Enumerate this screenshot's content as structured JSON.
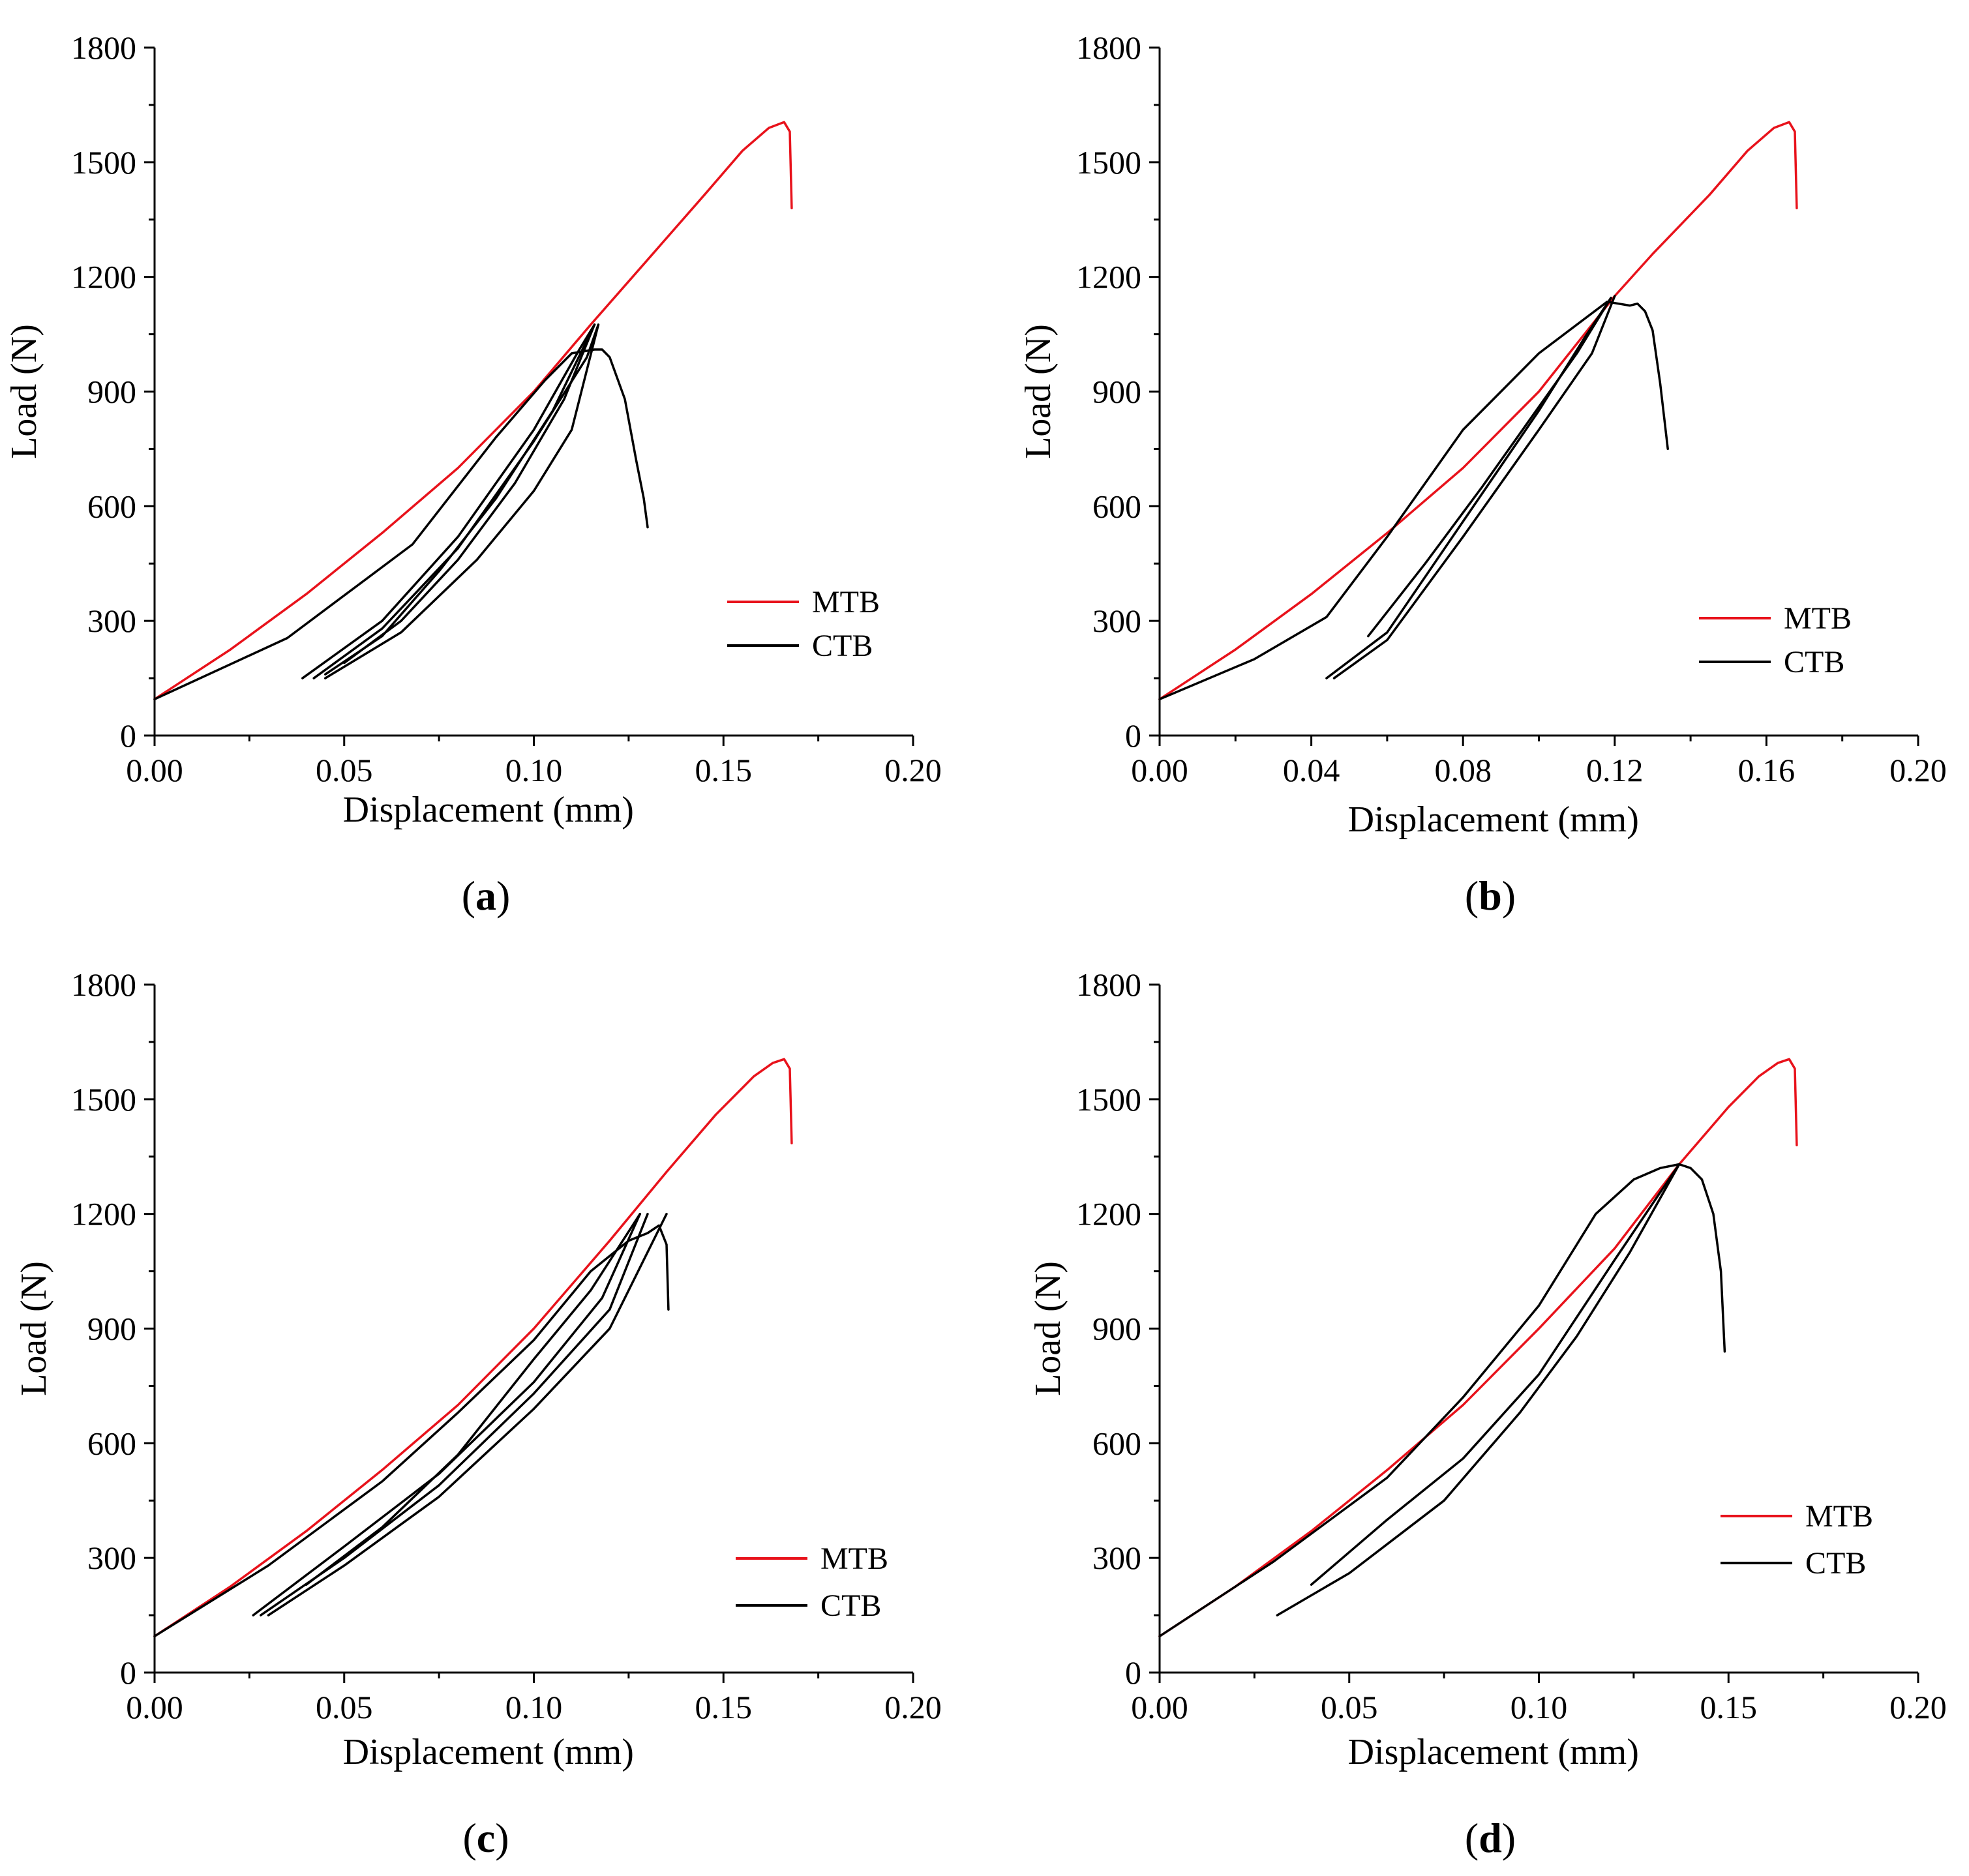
{
  "figure": {
    "colors": {
      "mtb": "#e8121b",
      "ctb": "#000000",
      "axis": "#000000",
      "background": "#ffffff"
    }
  },
  "chart_data": [
    {
      "panel": "a",
      "label_prefix": "(",
      "label_letter": "a",
      "label_suffix": ")",
      "type": "line",
      "xlabel": "Displacement  (mm)",
      "ylabel": "Load  (N)",
      "xlim": [
        0,
        0.2
      ],
      "ylim": [
        0,
        1800
      ],
      "xticks": [
        "0.00",
        "0.05",
        "0.10",
        "0.15",
        "0.20"
      ],
      "yticks": [
        "0",
        "300",
        "600",
        "900",
        "1200",
        "1500",
        "1800"
      ],
      "legend": {
        "position": "lower-right",
        "entries": [
          "MTB",
          "CTB"
        ]
      },
      "series": [
        {
          "name": "MTB",
          "color": "#e8121b",
          "x": [
            0,
            0.02,
            0.04,
            0.06,
            0.08,
            0.1,
            0.115,
            0.13,
            0.145,
            0.155,
            0.162,
            0.166,
            0.1675,
            0.168
          ],
          "y": [
            95,
            225,
            370,
            530,
            700,
            900,
            1075,
            1245,
            1415,
            1530,
            1590,
            1605,
            1580,
            1380
          ]
        },
        {
          "name": "CTB",
          "color": "#000000",
          "x": [
            0,
            0.035,
            0.068,
            0.09,
            0.103,
            0.11,
            0.116,
            0.118,
            0.12,
            0.124,
            0.127,
            0.129,
            0.13
          ],
          "y": [
            95,
            255,
            500,
            780,
            930,
            1000,
            1010,
            1010,
            990,
            880,
            720,
            620,
            545
          ]
        },
        {
          "name": "CTB",
          "color": "#000000",
          "x": [
            0.039,
            0.06,
            0.08,
            0.1,
            0.112,
            0.116
          ],
          "y": [
            150,
            300,
            520,
            800,
            1010,
            1075
          ]
        },
        {
          "name": "CTB",
          "color": "#000000",
          "x": [
            0.042,
            0.06,
            0.08,
            0.1,
            0.114,
            0.117
          ],
          "y": [
            150,
            280,
            490,
            770,
            990,
            1075
          ]
        },
        {
          "name": "CTB",
          "color": "#000000",
          "x": [
            0.045,
            0.065,
            0.085,
            0.1,
            0.11,
            0.117
          ],
          "y": [
            150,
            270,
            460,
            640,
            800,
            1075
          ]
        },
        {
          "name": "CTB",
          "color": "#000000",
          "x": [
            0.116,
            0.105,
            0.09,
            0.075,
            0.06,
            0.045
          ],
          "y": [
            1075,
            850,
            620,
            430,
            260,
            160
          ]
        },
        {
          "name": "CTB",
          "color": "#000000",
          "x": [
            0.116,
            0.108,
            0.095,
            0.08,
            0.065,
            0.05
          ],
          "y": [
            1075,
            880,
            660,
            460,
            300,
            190
          ]
        }
      ]
    },
    {
      "panel": "b",
      "label_prefix": "(",
      "label_letter": "b",
      "label_suffix": ")",
      "type": "line",
      "xlabel": "Displacement  (mm)",
      "ylabel": "Load  (N)",
      "xlim": [
        0,
        0.2
      ],
      "ylim": [
        0,
        1800
      ],
      "xticks": [
        "0.00",
        "0.04",
        "0.08",
        "0.12",
        "0.16",
        "0.20"
      ],
      "yticks": [
        "0",
        "300",
        "600",
        "900",
        "1200",
        "1500",
        "1800"
      ],
      "legend": {
        "position": "lower-right",
        "entries": [
          "MTB",
          "CTB"
        ]
      },
      "series": [
        {
          "name": "MTB",
          "color": "#e8121b",
          "x": [
            0,
            0.02,
            0.04,
            0.06,
            0.08,
            0.1,
            0.12,
            0.13,
            0.145,
            0.155,
            0.162,
            0.166,
            0.1675,
            0.168
          ],
          "y": [
            95,
            225,
            370,
            530,
            700,
            900,
            1150,
            1260,
            1415,
            1530,
            1590,
            1605,
            1580,
            1380
          ]
        },
        {
          "name": "CTB",
          "color": "#000000",
          "x": [
            0,
            0.025,
            0.044,
            0.06,
            0.08,
            0.1,
            0.112,
            0.118,
            0.121,
            0.124,
            0.126,
            0.128,
            0.13,
            0.132,
            0.134
          ],
          "y": [
            95,
            200,
            310,
            520,
            800,
            1000,
            1090,
            1135,
            1130,
            1125,
            1130,
            1110,
            1060,
            920,
            750
          ]
        },
        {
          "name": "CTB",
          "color": "#000000",
          "x": [
            0.044,
            0.06,
            0.08,
            0.1,
            0.112,
            0.119
          ],
          "y": [
            150,
            270,
            560,
            850,
            1040,
            1145
          ]
        },
        {
          "name": "CTB",
          "color": "#000000",
          "x": [
            0.046,
            0.06,
            0.08,
            0.1,
            0.114,
            0.12
          ],
          "y": [
            150,
            250,
            520,
            800,
            1000,
            1150
          ]
        },
        {
          "name": "CTB",
          "color": "#000000",
          "x": [
            0.119,
            0.11,
            0.1,
            0.085,
            0.07,
            0.055
          ],
          "y": [
            1145,
            1000,
            860,
            650,
            450,
            260
          ]
        }
      ]
    },
    {
      "panel": "c",
      "label_prefix": "(",
      "label_letter": "c",
      "label_suffix": ")",
      "type": "line",
      "xlabel": "Displacement  (mm)",
      "ylabel": "Load  (N)",
      "xlim": [
        0,
        0.2
      ],
      "ylim": [
        0,
        1800
      ],
      "xticks": [
        "0.00",
        "0.05",
        "0.10",
        "0.15",
        "0.20"
      ],
      "yticks": [
        "0",
        "300",
        "600",
        "900",
        "1200",
        "1500",
        "1800"
      ],
      "legend": {
        "position": "lower-right",
        "entries": [
          "MTB",
          "CTB"
        ]
      },
      "series": [
        {
          "name": "MTB",
          "color": "#e8121b",
          "x": [
            0,
            0.02,
            0.04,
            0.06,
            0.08,
            0.1,
            0.12,
            0.135,
            0.148,
            0.158,
            0.163,
            0.166,
            0.1675,
            0.168
          ],
          "y": [
            95,
            225,
            370,
            530,
            700,
            900,
            1130,
            1310,
            1460,
            1560,
            1595,
            1605,
            1580,
            1385
          ]
        },
        {
          "name": "CTB",
          "color": "#000000",
          "x": [
            0,
            0.03,
            0.06,
            0.08,
            0.1,
            0.115,
            0.125,
            0.13,
            0.133,
            0.135,
            0.1355
          ],
          "y": [
            95,
            280,
            500,
            680,
            870,
            1050,
            1130,
            1150,
            1170,
            1120,
            950
          ]
        },
        {
          "name": "CTB",
          "color": "#000000",
          "x": [
            0.026,
            0.05,
            0.075,
            0.1,
            0.118,
            0.128
          ],
          "y": [
            150,
            330,
            520,
            760,
            980,
            1200
          ]
        },
        {
          "name": "CTB",
          "color": "#000000",
          "x": [
            0.028,
            0.05,
            0.075,
            0.1,
            0.12,
            0.13
          ],
          "y": [
            150,
            300,
            490,
            730,
            950,
            1200
          ]
        },
        {
          "name": "CTB",
          "color": "#000000",
          "x": [
            0.03,
            0.05,
            0.075,
            0.1,
            0.12,
            0.135
          ],
          "y": [
            150,
            280,
            460,
            690,
            900,
            1200
          ]
        },
        {
          "name": "CTB",
          "color": "#000000",
          "x": [
            0.128,
            0.115,
            0.1,
            0.08,
            0.06,
            0.04
          ],
          "y": [
            1200,
            1000,
            820,
            570,
            380,
            230
          ]
        }
      ]
    },
    {
      "panel": "d",
      "label_prefix": "(",
      "label_letter": "d",
      "label_suffix": ")",
      "type": "line",
      "xlabel": "Displacement  (mm)",
      "ylabel": "Load  (N)",
      "xlim": [
        0,
        0.2
      ],
      "ylim": [
        0,
        1800
      ],
      "xticks": [
        "0.00",
        "0.05",
        "0.10",
        "0.15",
        "0.20"
      ],
      "yticks": [
        "0",
        "300",
        "600",
        "900",
        "1200",
        "1500",
        "1800"
      ],
      "legend": {
        "position": "lower-right",
        "entries": [
          "MTB",
          "CTB"
        ]
      },
      "series": [
        {
          "name": "MTB",
          "color": "#e8121b",
          "x": [
            0,
            0.02,
            0.04,
            0.06,
            0.08,
            0.1,
            0.12,
            0.137,
            0.15,
            0.158,
            0.163,
            0.166,
            0.1675,
            0.168
          ],
          "y": [
            95,
            225,
            370,
            530,
            700,
            900,
            1110,
            1330,
            1480,
            1560,
            1595,
            1605,
            1580,
            1380
          ]
        },
        {
          "name": "CTB",
          "color": "#000000",
          "x": [
            0,
            0.03,
            0.06,
            0.08,
            0.1,
            0.115,
            0.125,
            0.132,
            0.137,
            0.14,
            0.143,
            0.146,
            0.148,
            0.149
          ],
          "y": [
            95,
            290,
            510,
            720,
            960,
            1200,
            1290,
            1320,
            1330,
            1320,
            1290,
            1200,
            1050,
            840
          ]
        },
        {
          "name": "CTB",
          "color": "#000000",
          "x": [
            0.031,
            0.05,
            0.075,
            0.095,
            0.11,
            0.124,
            0.137
          ],
          "y": [
            150,
            260,
            450,
            680,
            880,
            1100,
            1330
          ]
        },
        {
          "name": "CTB",
          "color": "#000000",
          "x": [
            0.137,
            0.12,
            0.1,
            0.08,
            0.06,
            0.04
          ],
          "y": [
            1330,
            1080,
            780,
            560,
            400,
            230
          ]
        }
      ]
    }
  ]
}
